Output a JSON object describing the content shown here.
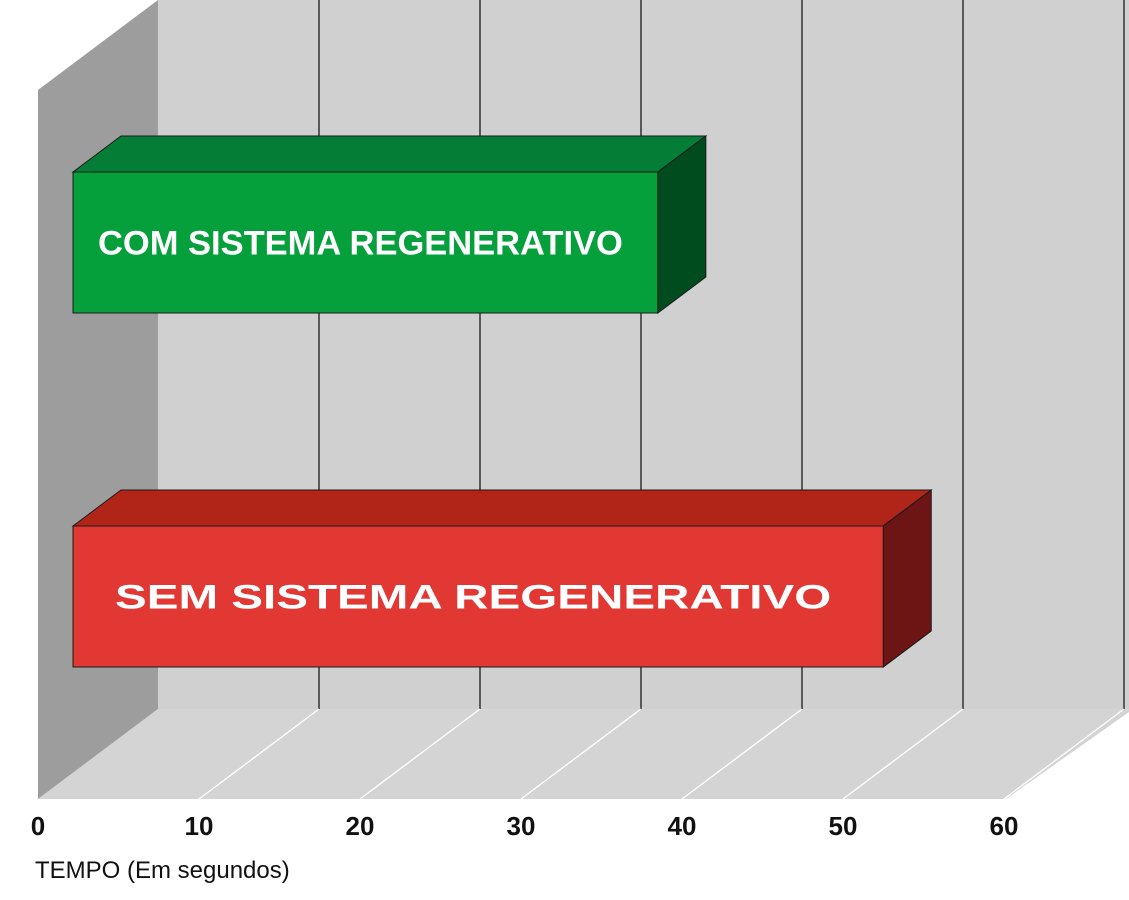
{
  "chart_data": {
    "type": "bar",
    "orientation": "horizontal",
    "three_d": true,
    "xlabel": "TEMPO (Em segundos)",
    "ticks": [
      0,
      10,
      20,
      30,
      40,
      50,
      60
    ],
    "xlim": [
      0,
      60
    ],
    "grid": true,
    "bars": [
      {
        "label": "COM SISTEMA REGENERATIVO",
        "value": 38.5,
        "color": "#05a03c",
        "top_color": "#047d37",
        "side_color": "#004c1f"
      },
      {
        "label": "SEM SISTEMA REGENERATIVO",
        "value": 52.5,
        "color": "#e13834",
        "top_color": "#b12519",
        "side_color": "#6d1414"
      }
    ],
    "colors": {
      "back_wall": "#d0d0d0",
      "left_wall": "#9d9d9d",
      "floor": "#d4d4d4",
      "gridline": "#1a1a1a",
      "floor_gridline": "#ffffff"
    }
  }
}
